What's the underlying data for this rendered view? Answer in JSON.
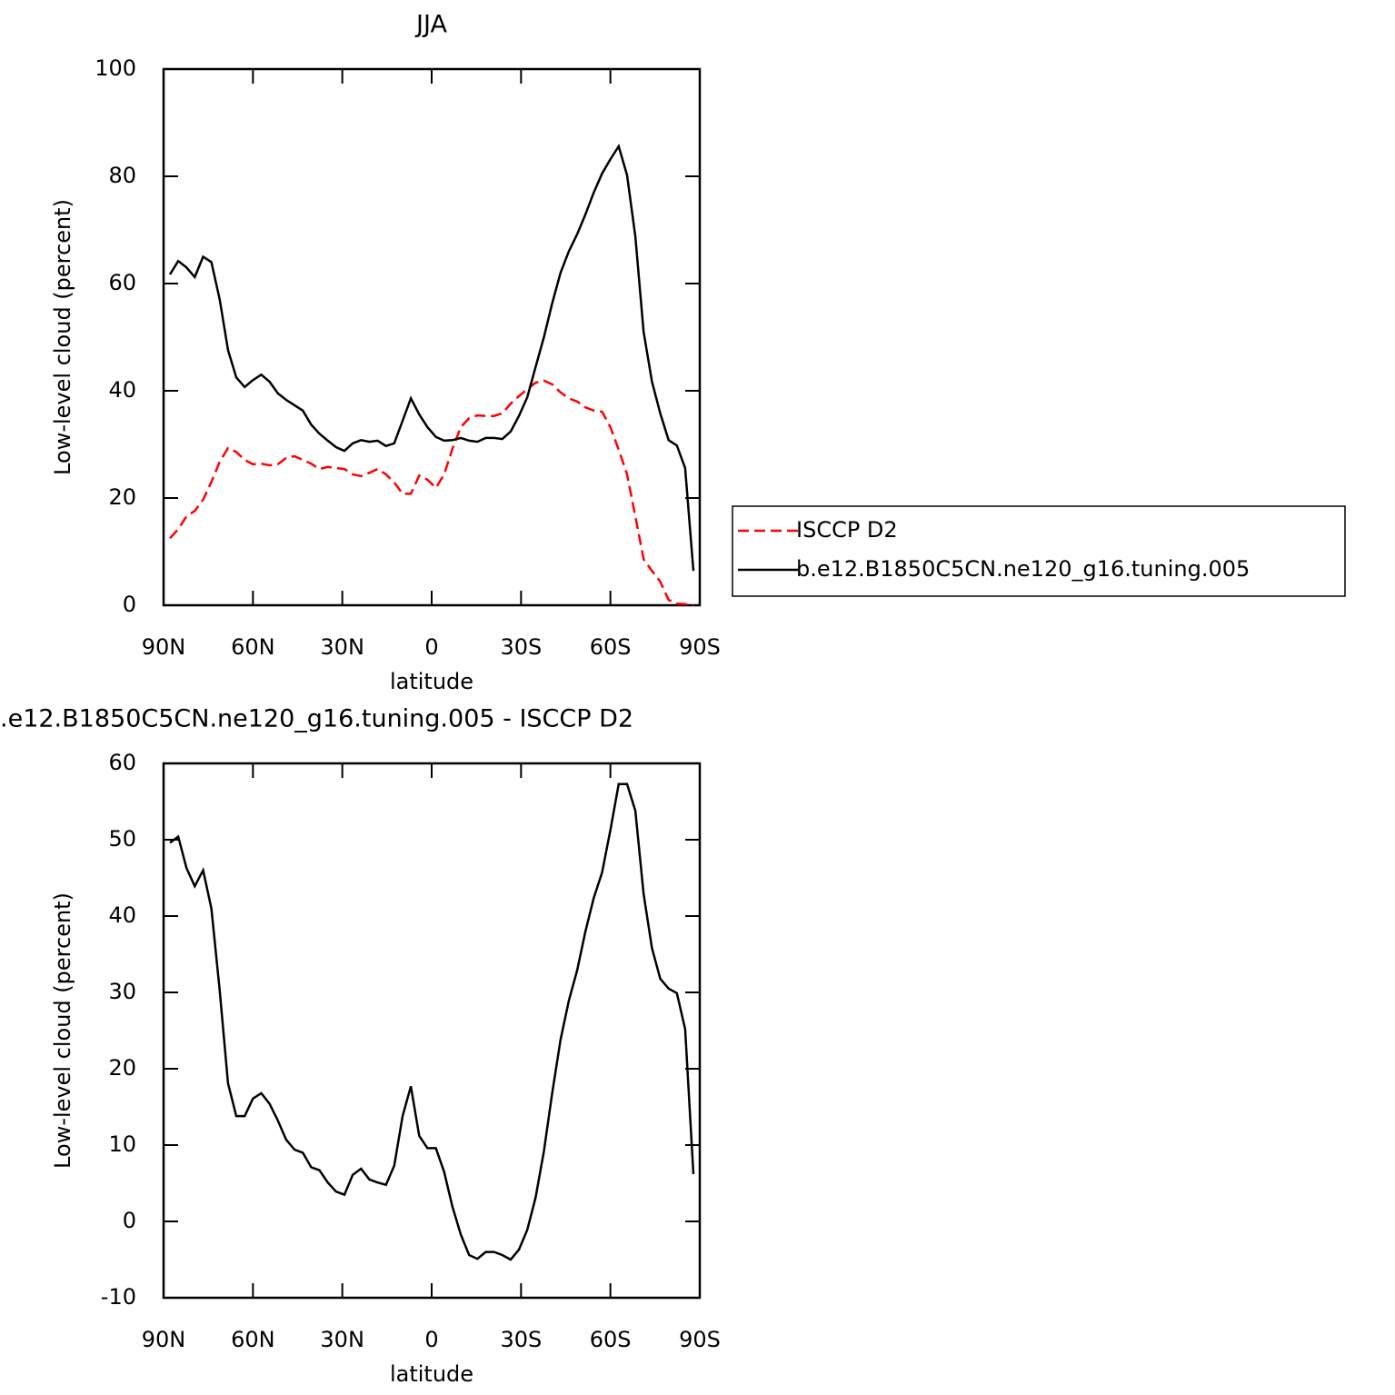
{
  "chart_data": [
    {
      "type": "line",
      "title": "JJA",
      "xlabel": "latitude",
      "ylabel": "Low-level cloud (percent)",
      "x": [
        87.86,
        85.1,
        82.31,
        79.53,
        76.74,
        73.95,
        71.16,
        68.37,
        65.58,
        62.79,
        60.0,
        57.21,
        54.42,
        51.63,
        48.84,
        46.04,
        43.25,
        40.46,
        37.67,
        34.88,
        32.09,
        29.3,
        26.51,
        23.72,
        20.93,
        18.14,
        15.35,
        12.56,
        9.77,
        6.98,
        4.19,
        1.4,
        -1.4,
        -4.19,
        -6.98,
        -9.77,
        -12.56,
        -15.35,
        -18.14,
        -20.93,
        -23.72,
        -26.51,
        -29.3,
        -32.09,
        -34.88,
        -37.67,
        -40.46,
        -43.25,
        -46.04,
        -48.84,
        -51.63,
        -54.42,
        -57.21,
        -60.0,
        -62.79,
        -65.58,
        -68.37,
        -71.16,
        -73.95,
        -76.74,
        -79.53,
        -82.31,
        -85.1,
        -87.86
      ],
      "xlim": [
        90,
        -90
      ],
      "xticks": [
        {
          "value": 90,
          "label": "90N"
        },
        {
          "value": 60,
          "label": "60N"
        },
        {
          "value": 30,
          "label": "30N"
        },
        0,
        {
          "value": -30,
          "label": "30S"
        },
        {
          "value": -60,
          "label": "60S"
        },
        {
          "value": -90,
          "label": "90S"
        }
      ],
      "ylim": [
        0,
        100
      ],
      "yticks": [
        0,
        20,
        40,
        60,
        80,
        100
      ],
      "legend": "right",
      "series": [
        {
          "name": "ISCCP D2",
          "color": "#ff0000",
          "dash": true,
          "values": [
            12.5,
            14.2,
            16.6,
            17.6,
            19.7,
            23,
            26.8,
            29.3,
            28.6,
            27.1,
            26.3,
            26.4,
            26.1,
            26.3,
            27.5,
            27.8,
            27.1,
            26.4,
            25.4,
            25.8,
            25.6,
            25.4,
            24.4,
            24.1,
            24.7,
            25.4,
            24.4,
            22.9,
            20.8,
            20.8,
            24.2,
            23.4,
            21.9,
            24.4,
            29.2,
            33.2,
            34.9,
            35.4,
            35.3,
            35.3,
            35.8,
            37.6,
            39,
            40.3,
            41.5,
            41.9,
            41.2,
            39.7,
            38.6,
            38,
            36.9,
            36.3,
            36.1,
            33.2,
            29,
            24.4,
            16.6,
            8.6,
            6.4,
            4.4,
            1,
            0.3,
            0.2,
            0
          ]
        },
        {
          "name": "b.e12.B1850C5CN.ne120_g16.tuning.005",
          "color": "#000000",
          "dash": false,
          "values": [
            61.7,
            64.2,
            63,
            61.2,
            65,
            64,
            57,
            47.6,
            42.5,
            40.7,
            42,
            43,
            41.7,
            39.5,
            38.3,
            37.3,
            36.3,
            33.7,
            32,
            30.7,
            29.5,
            28.8,
            30.2,
            30.8,
            30.5,
            30.7,
            29.7,
            30.2,
            34.4,
            38.6,
            35.6,
            33.2,
            31.4,
            30.7,
            30.8,
            31.2,
            30.7,
            30.5,
            31.2,
            31.2,
            31,
            32.4,
            35.3,
            38.8,
            44.4,
            50,
            56.3,
            62,
            66,
            69.2,
            72.9,
            77,
            80.5,
            83.2,
            85.6,
            80.2,
            68.8,
            51,
            41.7,
            35.8,
            30.8,
            29.8,
            25.6,
            6.4
          ]
        }
      ]
    },
    {
      "type": "line",
      "title": ".e12.B1850C5CN.ne120_g16.tuning.005 - ISCCP D2",
      "xlabel": "latitude",
      "ylabel": "Low-level cloud (percent)",
      "x": [
        87.86,
        85.1,
        82.31,
        79.53,
        76.74,
        73.95,
        71.16,
        68.37,
        65.58,
        62.79,
        60.0,
        57.21,
        54.42,
        51.63,
        48.84,
        46.04,
        43.25,
        40.46,
        37.67,
        34.88,
        32.09,
        29.3,
        26.51,
        23.72,
        20.93,
        18.14,
        15.35,
        12.56,
        9.77,
        6.98,
        4.19,
        1.4,
        -1.4,
        -4.19,
        -6.98,
        -9.77,
        -12.56,
        -15.35,
        -18.14,
        -20.93,
        -23.72,
        -26.51,
        -29.3,
        -32.09,
        -34.88,
        -37.67,
        -40.46,
        -43.25,
        -46.04,
        -48.84,
        -51.63,
        -54.42,
        -57.21,
        -60.0,
        -62.79,
        -65.58,
        -68.37,
        -71.16,
        -73.95,
        -76.74,
        -79.53,
        -82.31,
        -85.1,
        -87.86
      ],
      "xlim": [
        90,
        -90
      ],
      "xticks": [
        {
          "value": 90,
          "label": "90N"
        },
        {
          "value": 60,
          "label": "60N"
        },
        {
          "value": 30,
          "label": "30N"
        },
        0,
        {
          "value": -30,
          "label": "30S"
        },
        {
          "value": -60,
          "label": "60S"
        },
        {
          "value": -90,
          "label": "90S"
        }
      ],
      "ylim": [
        -10,
        60
      ],
      "yticks": [
        -10,
        0,
        10,
        20,
        30,
        40,
        50,
        60
      ],
      "color": "#000000",
      "values": [
        49.6,
        50.4,
        46.3,
        43.9,
        46,
        41,
        30.2,
        18.1,
        13.8,
        13.8,
        16.1,
        16.8,
        15.4,
        13.2,
        10.7,
        9.4,
        9,
        7.1,
        6.7,
        5.1,
        3.9,
        3.5,
        6.1,
        6.9,
        5.5,
        5.1,
        4.8,
        7.3,
        13.8,
        17.7,
        11.2,
        9.6,
        9.6,
        6.5,
        1.9,
        -1.7,
        -4.4,
        -4.9,
        -4,
        -4,
        -4.4,
        -5,
        -3.7,
        -1.1,
        3.1,
        9.2,
        16.8,
        23.8,
        28.9,
        32.9,
        38,
        42.4,
        45.7,
        51.3,
        57.3,
        57.3,
        53.8,
        42.9,
        35.8,
        31.8,
        30.5,
        29.9,
        25.2,
        6.2
      ]
    }
  ]
}
